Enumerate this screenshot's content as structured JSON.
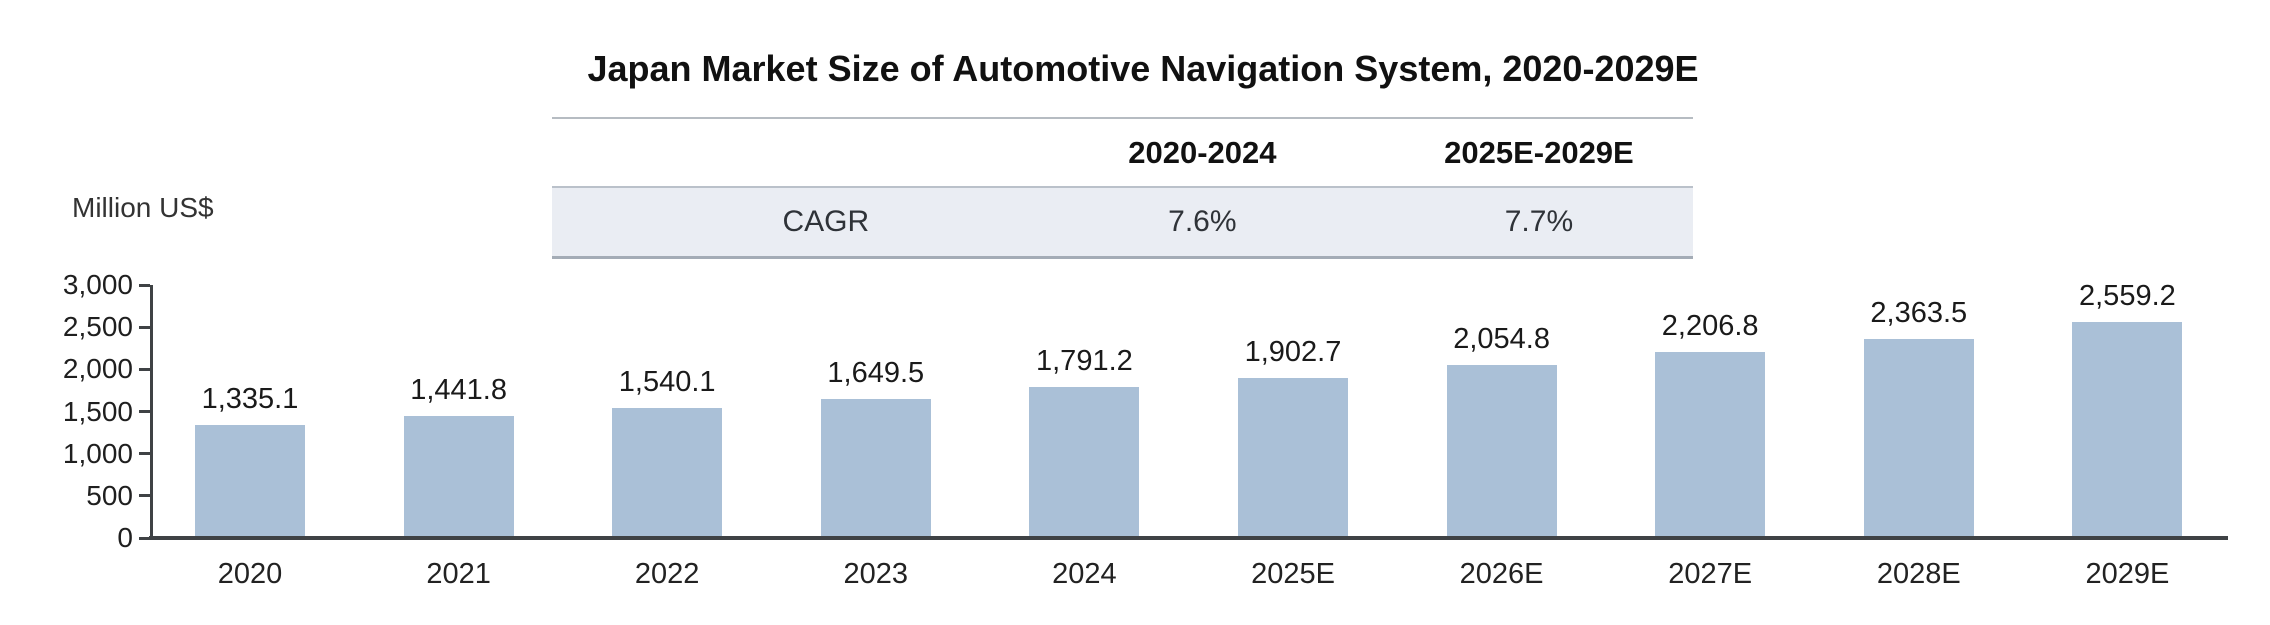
{
  "chart_data": {
    "type": "bar",
    "title": "Japan Market Size of Automotive Navigation System, 2020-2029E",
    "unit_label": "Million US$",
    "categories": [
      "2020",
      "2021",
      "2022",
      "2023",
      "2024",
      "2025E",
      "2026E",
      "2027E",
      "2028E",
      "2029E"
    ],
    "values": [
      1335.1,
      1441.8,
      1540.1,
      1649.5,
      1791.2,
      1902.7,
      2054.8,
      2206.8,
      2363.5,
      2559.2
    ],
    "value_labels": [
      "1,335.1",
      "1,441.8",
      "1,540.1",
      "1,649.5",
      "1,791.2",
      "1,902.7",
      "2,054.8",
      "2,206.8",
      "2,363.5",
      "2,559.2"
    ],
    "ylim": [
      0,
      3000
    ],
    "yticks": [
      3000,
      2500,
      2000,
      1500,
      1000,
      500,
      0
    ],
    "ytick_labels": [
      "3,000",
      "2,500",
      "2,000",
      "1,500",
      "1,000",
      "500",
      "0"
    ],
    "grid": false,
    "legend": "none",
    "bar_color": "#aac0d7",
    "axis_color": "#3f4245"
  },
  "cagr_table": {
    "columns": [
      "",
      "2020-2024",
      "2025E-2029E"
    ],
    "rows": [
      [
        "CAGR",
        "7.6%",
        "7.7%"
      ]
    ],
    "row_bg": "#eaedf3"
  }
}
